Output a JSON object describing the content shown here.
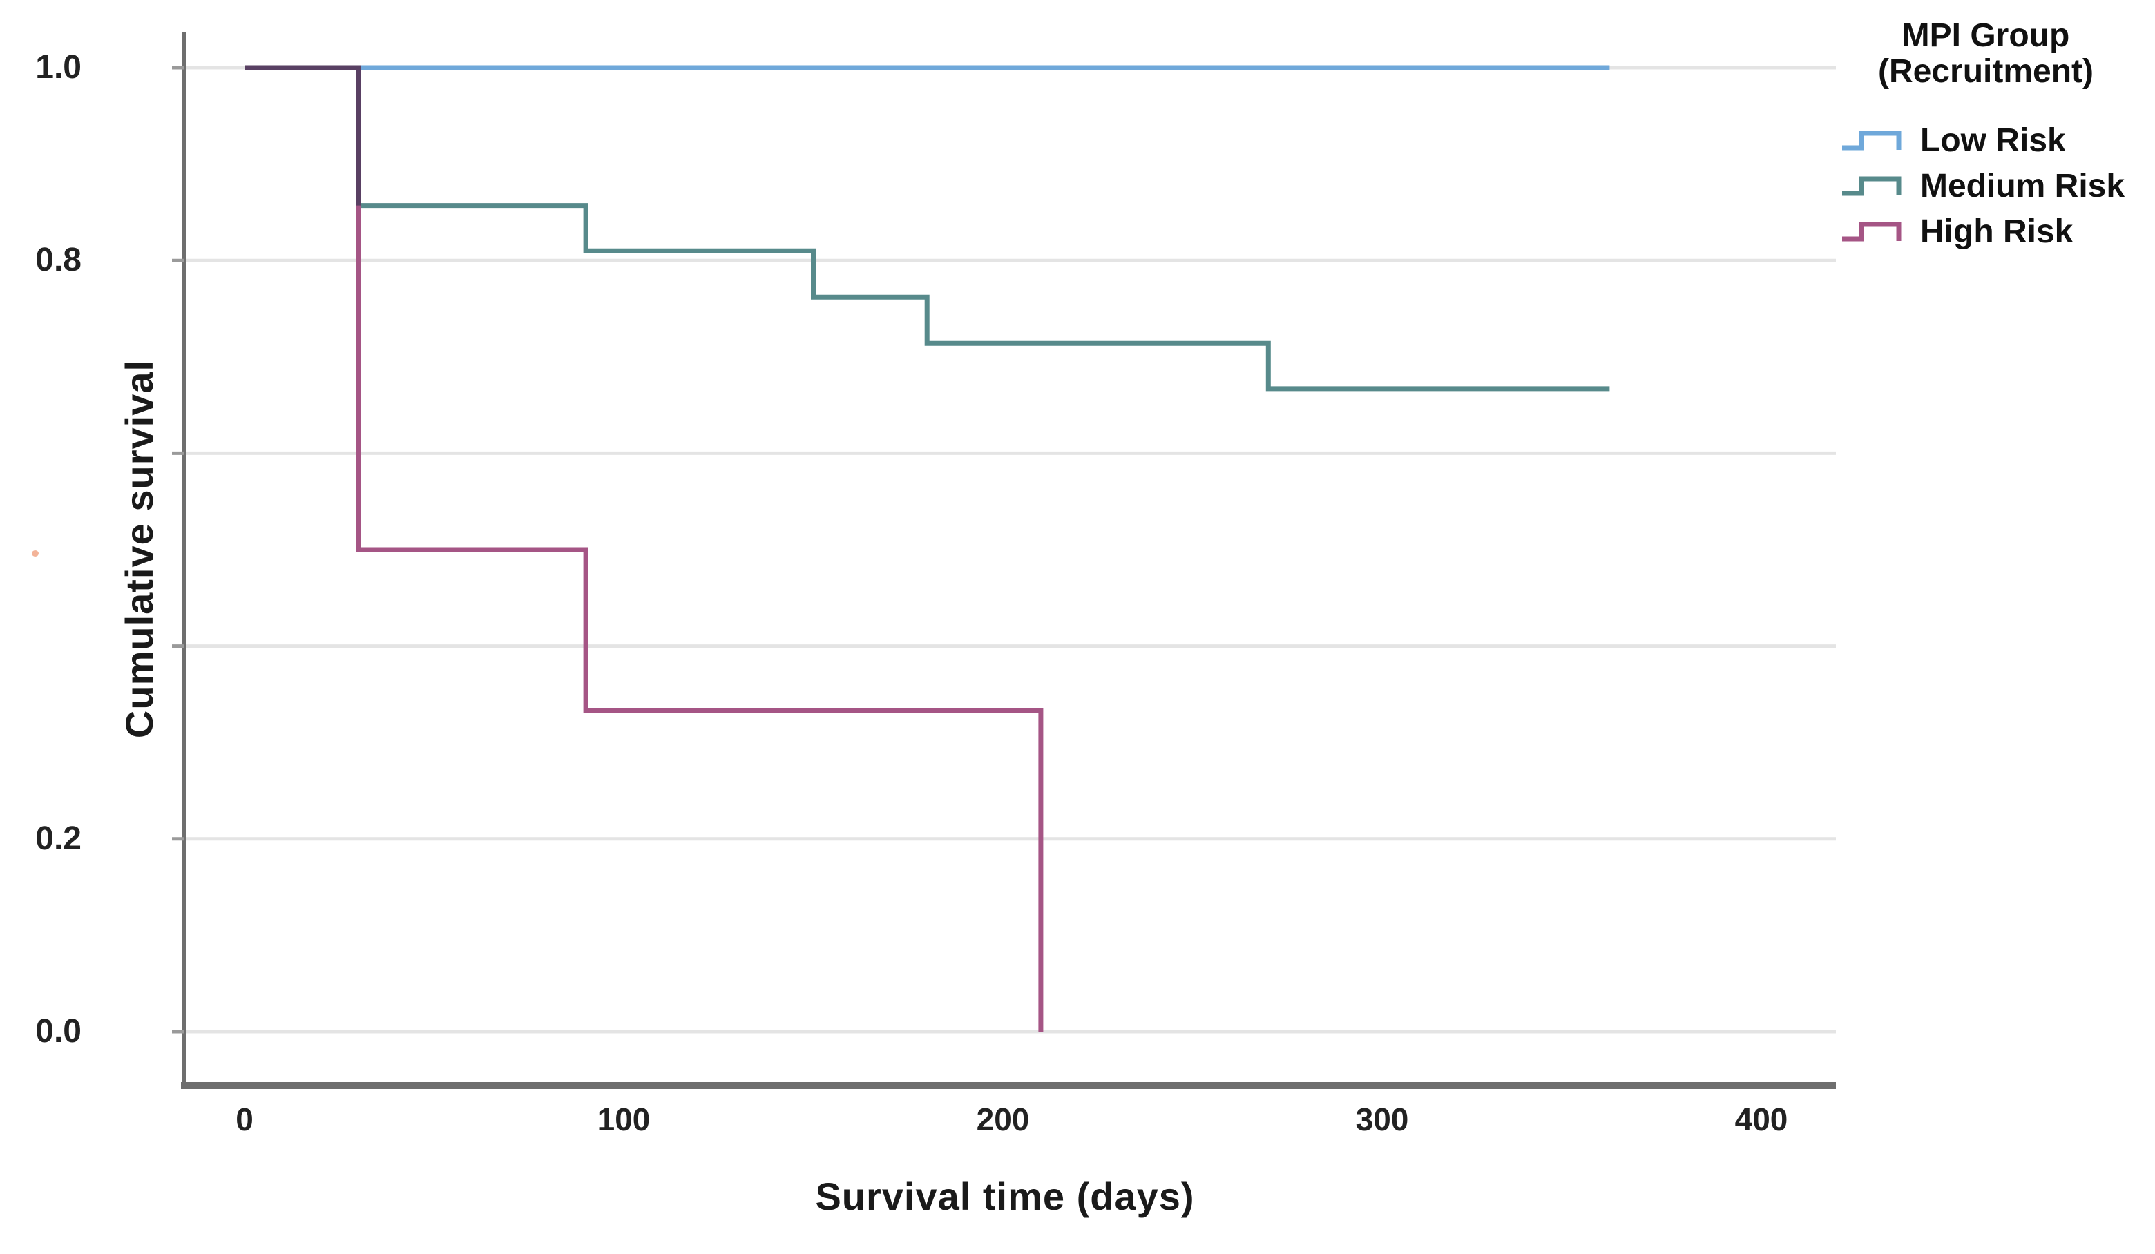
{
  "page": {
    "background": "#ffffff"
  },
  "y_axis": {
    "title": "Cumulative survival",
    "tick_labels": [
      {
        "label": "1.0",
        "value": 1.0
      },
      {
        "label": "0.8",
        "value": 0.8
      },
      {
        "label": "0.2",
        "value": 0.2
      },
      {
        "label": "0.0",
        "value": 0.0
      }
    ],
    "gridline_values": [
      1.0,
      0.8,
      0.6,
      0.4,
      0.2,
      0.0
    ]
  },
  "x_axis": {
    "title": "Survival time (days)",
    "ticks": [
      {
        "label": "0",
        "value": 0
      },
      {
        "label": "100",
        "value": 100
      },
      {
        "label": "200",
        "value": 200
      },
      {
        "label": "300",
        "value": 300
      },
      {
        "label": "400",
        "value": 400
      }
    ]
  },
  "legend": {
    "title_line1": "MPI Group",
    "title_line2": "(Recruitment)",
    "items": [
      {
        "label": "Low Risk",
        "color": "#6fa8da"
      },
      {
        "label": "Medium Risk",
        "color": "#578a8b"
      },
      {
        "label": "High Risk",
        "color": "#a55585"
      }
    ]
  },
  "colors": {
    "grid": "#e4e4e4",
    "axis": "#6e6e6e",
    "tick": "#9a9a9a",
    "overlap": "#594063"
  },
  "chart_data": {
    "type": "line",
    "subtype": "kaplan-meier-step",
    "title": "",
    "xlabel": "Survival time (days)",
    "ylabel": "Cumulative survival",
    "xlim": [
      0,
      420
    ],
    "ylim": [
      0.0,
      1.0
    ],
    "x_ticks": [
      0,
      100,
      200,
      300,
      400
    ],
    "y_ticks_labeled": [
      1.0,
      0.8,
      0.2,
      0.0
    ],
    "gridlines": [
      1.0,
      0.8,
      0.6,
      0.4,
      0.2,
      0.0
    ],
    "grid": "horizontal-only",
    "legend_position": "top-right",
    "legend_title": "MPI Group (Recruitment)",
    "series": [
      {
        "name": "Low Risk",
        "color": "#6fa8da",
        "points": [
          [
            0,
            1.0
          ],
          [
            360,
            1.0
          ]
        ]
      },
      {
        "name": "Medium Risk",
        "color": "#578a8b",
        "points": [
          [
            0,
            1.0
          ],
          [
            30,
            1.0
          ],
          [
            30,
            0.857
          ],
          [
            90,
            0.857
          ],
          [
            90,
            0.81
          ],
          [
            150,
            0.81
          ],
          [
            150,
            0.762
          ],
          [
            180,
            0.762
          ],
          [
            180,
            0.714
          ],
          [
            270,
            0.714
          ],
          [
            270,
            0.667
          ],
          [
            360,
            0.667
          ]
        ]
      },
      {
        "name": "High Risk",
        "color": "#a55585",
        "points": [
          [
            0,
            1.0
          ],
          [
            30,
            1.0
          ],
          [
            30,
            0.5
          ],
          [
            90,
            0.5
          ],
          [
            90,
            0.333
          ],
          [
            210,
            0.333
          ],
          [
            210,
            0.0
          ]
        ]
      }
    ],
    "overlap_segment": {
      "note": "all three curves overlap from day 0 to 30 at survival 1.0; medium and high drop together at day 30 down to 0.857",
      "color": "#594063",
      "points": [
        [
          0,
          1.0
        ],
        [
          30,
          1.0
        ],
        [
          30,
          0.857
        ]
      ]
    }
  }
}
